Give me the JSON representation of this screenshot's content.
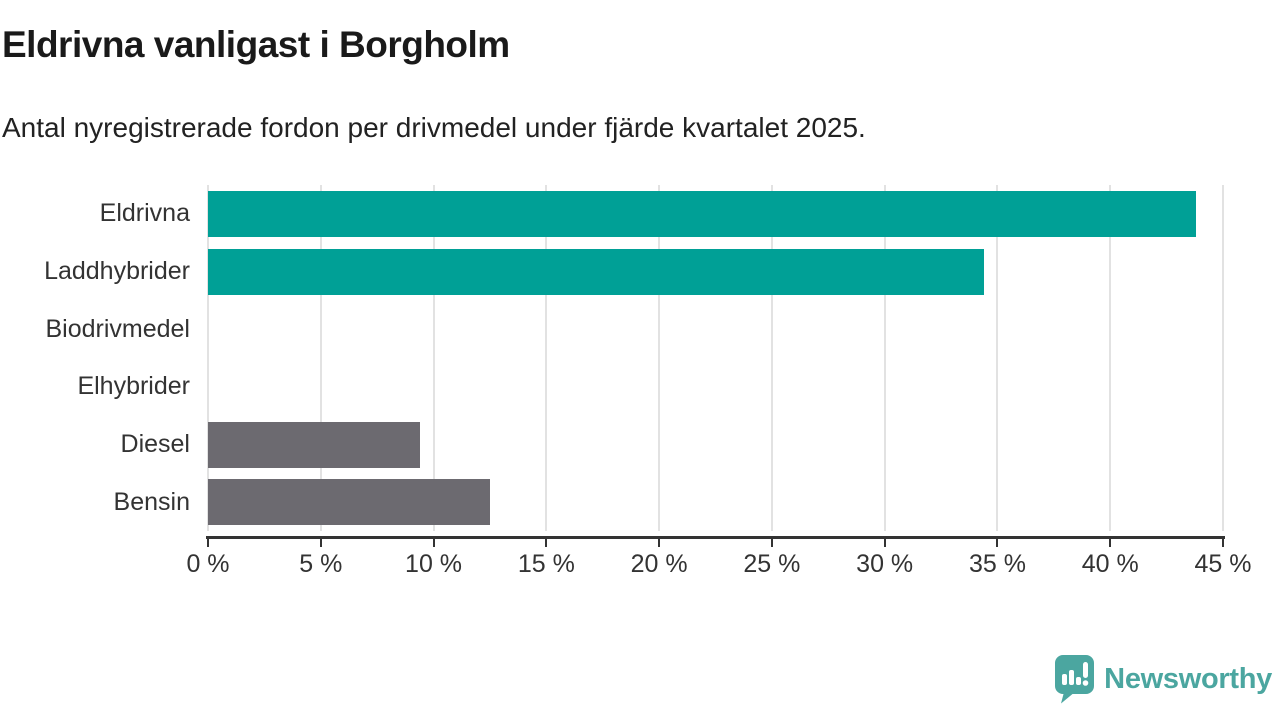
{
  "chart_data": {
    "type": "bar",
    "orientation": "horizontal",
    "title": "Eldrivna vanligast i Borgholm",
    "subtitle": "Antal nyregistrerade fordon per drivmedel under fjärde kvartalet 2025.",
    "unit": "%",
    "xlim": [
      0,
      45
    ],
    "grid": true,
    "legend": null,
    "categories": [
      "Eldrivna",
      "Laddhybrider",
      "Biodrivmedel",
      "Elhybrider",
      "Diesel",
      "Bensin"
    ],
    "values": [
      43.8,
      34.4,
      0,
      0,
      9.4,
      12.5
    ],
    "bars": [
      {
        "label": "Eldrivna",
        "value": 43.8,
        "color_key": "highlight"
      },
      {
        "label": "Laddhybrider",
        "value": 34.4,
        "color_key": "highlight"
      },
      {
        "label": "Biodrivmedel",
        "value": 0,
        "color_key": "default"
      },
      {
        "label": "Elhybrider",
        "value": 0,
        "color_key": "default"
      },
      {
        "label": "Diesel",
        "value": 9.4,
        "color_key": "default"
      },
      {
        "label": "Bensin",
        "value": 12.5,
        "color_key": "default"
      }
    ],
    "colors": {
      "highlight": "#00a096",
      "default": "#6c6a70"
    },
    "xticks": [
      {
        "value": 0,
        "label": "0 %"
      },
      {
        "value": 5,
        "label": "5 %"
      },
      {
        "value": 10,
        "label": "10 %"
      },
      {
        "value": 15,
        "label": "15 %"
      },
      {
        "value": 20,
        "label": "20 %"
      },
      {
        "value": 25,
        "label": "25 %"
      },
      {
        "value": 30,
        "label": "30 %"
      },
      {
        "value": 35,
        "label": "35 %"
      },
      {
        "value": 40,
        "label": "40 %"
      },
      {
        "value": 45,
        "label": "45 %"
      }
    ]
  },
  "footer": {
    "brand": "Newsworthy",
    "brand_color": "#4ba6a0",
    "icon": "newsworthy-speech-bubble-chart-icon"
  }
}
